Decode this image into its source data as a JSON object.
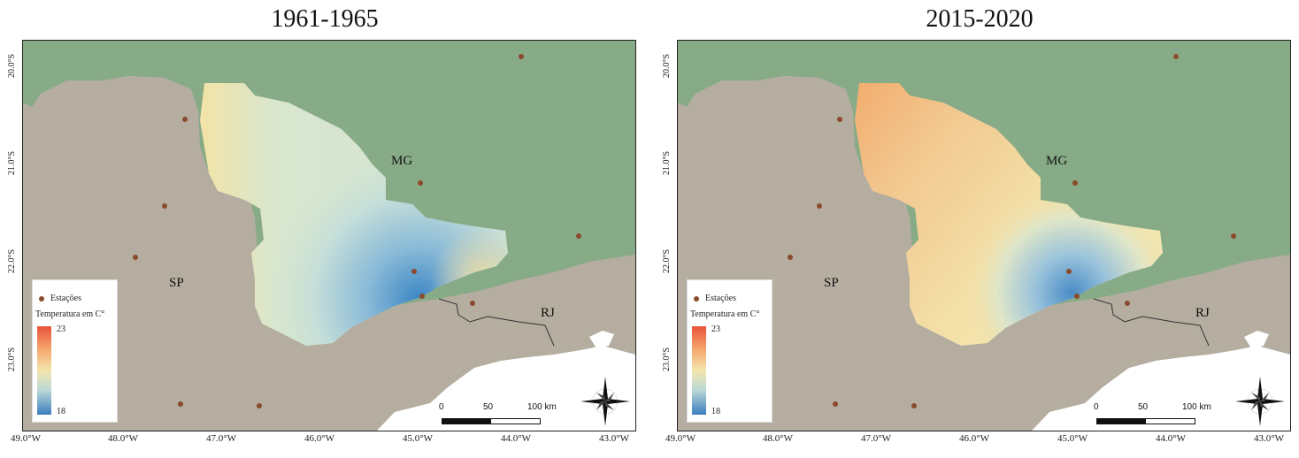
{
  "panels": [
    {
      "title": "1961-1965",
      "variant": "early",
      "gradient": {
        "topColor": "#d0e3d3",
        "leftColor": "#f3e3a6",
        "midColor": "#cfe2d8",
        "coldColor": "#3c86c4",
        "coastColor": "#ecdca6"
      }
    },
    {
      "title": "2015-2020",
      "variant": "late",
      "gradient": {
        "topColor": "#f3b47a",
        "leftColor": "#f2ad70",
        "midColor": "#f3dca0",
        "coldColor": "#4a8cc6",
        "coastColor": "#f0d8a0"
      }
    }
  ],
  "axes": {
    "latitude_ticks": [
      "20.0°S",
      "21.0°S",
      "22.0°S",
      "23.0°S"
    ],
    "longitude_ticks": [
      "49.0°W",
      "48.0°W",
      "47.0°W",
      "46.0°W",
      "45.0°W",
      "44.0°W",
      "43.0°W"
    ]
  },
  "states": {
    "mg": "MG",
    "sp": "SP",
    "rj": "RJ"
  },
  "legend": {
    "stations_label": "Estações",
    "temperature_title": "Temperatura em C°",
    "max": "23",
    "min": "18"
  },
  "scale_bar": {
    "labels": [
      "0",
      "50",
      "100 km"
    ]
  },
  "colors": {
    "mg_region": "#86ab86",
    "other_land": "#b4ada0",
    "ocean": "#ffffff",
    "station": "#8b4a2c"
  },
  "stations_count": 11
}
